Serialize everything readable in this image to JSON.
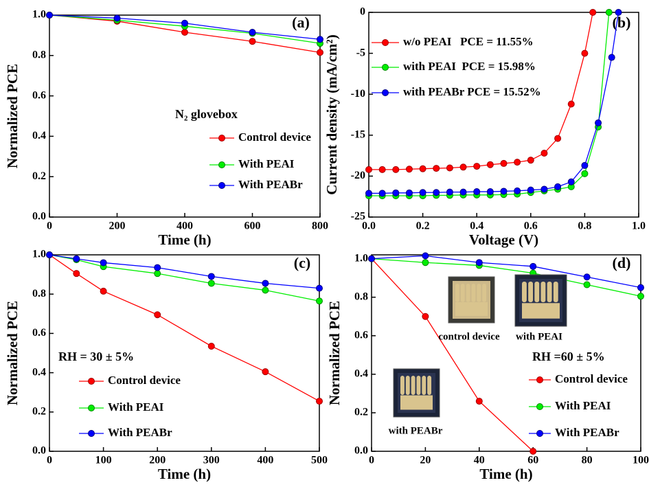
{
  "chart_data": [
    {
      "type": "line",
      "panel_label": "(a)",
      "annotation": "N₂ glovebox",
      "xlabel": "Time (h)",
      "ylabel": "Normalized PCE",
      "x": [
        0,
        200,
        400,
        600,
        800
      ],
      "xlim": [
        0,
        800
      ],
      "ylim": [
        0,
        1.0
      ],
      "xticks": [
        0,
        200,
        400,
        600,
        800
      ],
      "yticks": [
        {
          "value": 0,
          "label": "0.0"
        },
        0.2,
        0.4,
        0.6,
        0.8,
        {
          "value": 1,
          "label": "1.0"
        }
      ],
      "series": [
        {
          "name": "Control device",
          "color": "#ff0000",
          "values": [
            1.0,
            0.97,
            0.915,
            0.87,
            0.815
          ]
        },
        {
          "name": "With PEAI",
          "color": "#00ee00",
          "values": [
            1.0,
            0.975,
            0.945,
            0.91,
            0.86
          ]
        },
        {
          "name": "With PEABr",
          "color": "#0000ff",
          "values": [
            1.0,
            0.985,
            0.96,
            0.915,
            0.88
          ]
        }
      ]
    },
    {
      "type": "line",
      "panel_label": "(b)",
      "xlabel": "Voltage (V)",
      "ylabel": "Current density (mA/cm²)",
      "xlim": [
        0,
        1.0
      ],
      "ylim": [
        -25,
        0
      ],
      "xticks": [
        {
          "value": 0,
          "label": "0.0"
        },
        0.2,
        0.4,
        0.6,
        0.8,
        {
          "value": 1,
          "label": "1.0"
        }
      ],
      "yticks": [
        -25,
        -20,
        -15,
        -10,
        -5,
        0
      ],
      "series": [
        {
          "name": "w/o PEAI   PCE = 11.55%",
          "color": "#ff0000",
          "x": [
            0,
            0.05,
            0.1,
            0.15,
            0.2,
            0.25,
            0.3,
            0.35,
            0.4,
            0.45,
            0.5,
            0.55,
            0.6,
            0.65,
            0.7,
            0.75,
            0.8,
            0.83
          ],
          "values": [
            -19.2,
            -19.2,
            -19.2,
            -19.15,
            -19.1,
            -19.05,
            -19.0,
            -18.9,
            -18.8,
            -18.6,
            -18.45,
            -18.3,
            -18.05,
            -17.2,
            -15.4,
            -11.2,
            -5.0,
            0
          ]
        },
        {
          "name": "with PEAI  PCE = 15.98%",
          "color": "#00ee00",
          "x": [
            0,
            0.05,
            0.1,
            0.15,
            0.2,
            0.25,
            0.3,
            0.35,
            0.4,
            0.45,
            0.5,
            0.55,
            0.6,
            0.65,
            0.7,
            0.75,
            0.8,
            0.85,
            0.89
          ],
          "values": [
            -22.4,
            -22.4,
            -22.4,
            -22.4,
            -22.4,
            -22.35,
            -22.35,
            -22.3,
            -22.3,
            -22.3,
            -22.25,
            -22.2,
            -22.0,
            -21.8,
            -21.6,
            -21.3,
            -19.7,
            -14.0,
            0
          ]
        },
        {
          "name": "with PEABr PCE = 15.52%",
          "color": "#0000ff",
          "x": [
            0,
            0.05,
            0.1,
            0.15,
            0.2,
            0.25,
            0.3,
            0.35,
            0.4,
            0.45,
            0.5,
            0.55,
            0.6,
            0.65,
            0.7,
            0.75,
            0.8,
            0.85,
            0.9,
            0.925
          ],
          "values": [
            -22.1,
            -22.1,
            -22.05,
            -22.05,
            -22.0,
            -22.0,
            -21.95,
            -21.95,
            -21.9,
            -21.9,
            -21.85,
            -21.8,
            -21.7,
            -21.6,
            -21.3,
            -20.7,
            -18.7,
            -13.5,
            -5.5,
            0
          ]
        }
      ]
    },
    {
      "type": "line",
      "panel_label": "(c)",
      "annotation": "RH = 30 ± 5%",
      "xlabel": "Time (h)",
      "ylabel": "Normalized PCE",
      "x": [
        0,
        50,
        100,
        200,
        300,
        400,
        500
      ],
      "xlim": [
        0,
        500
      ],
      "ylim": [
        0,
        1.0
      ],
      "xticks": [
        0,
        100,
        200,
        300,
        400,
        500
      ],
      "yticks": [
        {
          "value": 0,
          "label": "0.0"
        },
        0.2,
        0.4,
        0.6,
        0.8,
        {
          "value": 1,
          "label": "1.0"
        }
      ],
      "series": [
        {
          "name": "Control device",
          "color": "#ff0000",
          "values": [
            1.0,
            0.905,
            0.815,
            0.695,
            0.535,
            0.405,
            0.255
          ]
        },
        {
          "name": "With PEAI",
          "color": "#00ee00",
          "values": [
            1.0,
            0.975,
            0.94,
            0.905,
            0.855,
            0.82,
            0.765
          ]
        },
        {
          "name": "With PEABr",
          "color": "#0000ff",
          "values": [
            1.0,
            0.98,
            0.96,
            0.935,
            0.89,
            0.855,
            0.83
          ]
        }
      ]
    },
    {
      "type": "line",
      "panel_label": "(d)",
      "annotation": "RH =60 ± 5%",
      "xlabel": "Time (h)",
      "ylabel": "Normalized PCE",
      "x": [
        0,
        20,
        40,
        60,
        80,
        100
      ],
      "xlim": [
        0,
        100
      ],
      "ylim": [
        0,
        1.02
      ],
      "xticks": [
        0,
        20,
        40,
        60,
        80,
        100
      ],
      "yticks": [
        {
          "value": 0,
          "label": "0.0"
        },
        0.2,
        0.4,
        0.6,
        0.8,
        {
          "value": 1,
          "label": "1.0"
        }
      ],
      "photos": [
        "control device",
        "with PEAI",
        "with PEABr"
      ],
      "series": [
        {
          "name": "Control device",
          "color": "#ff0000",
          "values": [
            1.0,
            0.7,
            0.26,
            0.0,
            null,
            null
          ]
        },
        {
          "name": "With PEAI",
          "color": "#00ee00",
          "values": [
            1.0,
            0.98,
            0.965,
            0.925,
            0.865,
            0.805
          ]
        },
        {
          "name": "With PEABr",
          "color": "#0000ff",
          "values": [
            1.0,
            1.015,
            0.98,
            0.96,
            0.905,
            0.85
          ]
        }
      ]
    }
  ]
}
